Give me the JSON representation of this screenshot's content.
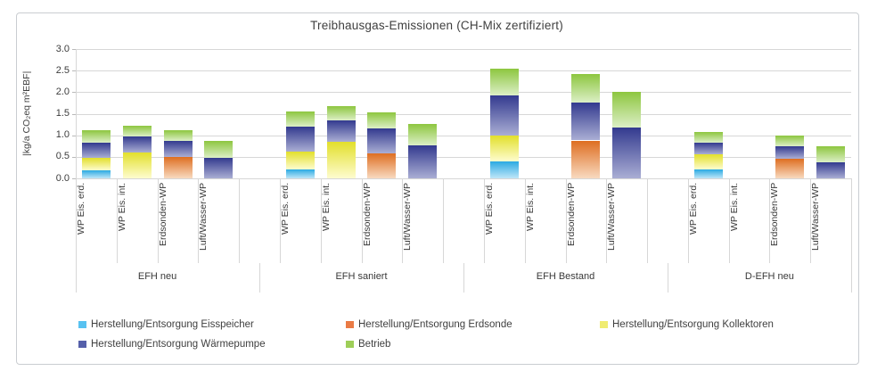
{
  "chart_data": {
    "type": "bar",
    "stacked": true,
    "title": "Treibhausgas-Emissionen (CH-Mix zertifiziert)",
    "grid": true,
    "legend_position": "bottom",
    "y_axis": {
      "label": "|kg/a CO₂eq m²EBF|",
      "min": 0,
      "max": 3,
      "tick_step": 0.5,
      "ticks": [
        "0.0",
        "0.5",
        "1.0",
        "1.5",
        "2.0",
        "2.5",
        "3.0"
      ]
    },
    "categories": [
      "WP Eis. erd.",
      "WP Eis. int.",
      "Erdsonden-WP",
      "Luft/Wasser-WP"
    ],
    "series": [
      {
        "name": "Herstellung/Entsorgung Eisspeicher",
        "color": "#2baae2",
        "color_light": "#bfe6f8",
        "legend_color": "#58c2f1"
      },
      {
        "name": "Herstellung/Entsorgung Erdsonde",
        "color": "#de6e21",
        "color_light": "#f8dac0",
        "legend_color": "#ea7b45"
      },
      {
        "name": "Herstellung/Entsorgung Kollektoren",
        "color": "#e2df2b",
        "color_light": "#fefccf",
        "legend_color": "#f0ec71"
      },
      {
        "name": "Herstellung/Entsorgung Wärmepumpe",
        "color": "#333a8f",
        "color_light": "#aaaed4",
        "legend_color": "#5560aa"
      },
      {
        "name": "Betrieb",
        "color": "#8dc63f",
        "color_light": "#dcefc6",
        "legend_color": "#9ece58"
      }
    ],
    "groups": [
      {
        "label": "EFH neu",
        "values": [
          [
            0.18,
            0,
            0.29,
            0.35,
            0.3
          ],
          [
            0,
            0,
            0.6,
            0.38,
            0.25
          ],
          [
            0,
            0.5,
            0,
            0.37,
            0.25
          ],
          [
            0,
            0,
            0,
            0.48,
            0.38
          ]
        ]
      },
      {
        "label": "EFH saniert",
        "values": [
          [
            0.2,
            0,
            0.42,
            0.58,
            0.35
          ],
          [
            0,
            0,
            0.85,
            0.49,
            0.33
          ],
          [
            0,
            0.58,
            0,
            0.57,
            0.38
          ],
          [
            0,
            0,
            0,
            0.77,
            0.5
          ]
        ]
      },
      {
        "label": "EFH Bestand",
        "values": [
          [
            0.4,
            0,
            0.6,
            0.93,
            0.62
          ],
          [
            0,
            0,
            0,
            0,
            0
          ],
          [
            0,
            0.88,
            0,
            0.88,
            0.66
          ],
          [
            0,
            0,
            0,
            1.17,
            0.84
          ]
        ]
      },
      {
        "label": "D-EFH neu",
        "values": [
          [
            0.2,
            0,
            0.35,
            0.27,
            0.26
          ],
          [
            0,
            0,
            0,
            0,
            0
          ],
          [
            0,
            0.45,
            0,
            0.29,
            0.25
          ],
          [
            0,
            0,
            0,
            0.38,
            0.36
          ]
        ]
      }
    ]
  }
}
